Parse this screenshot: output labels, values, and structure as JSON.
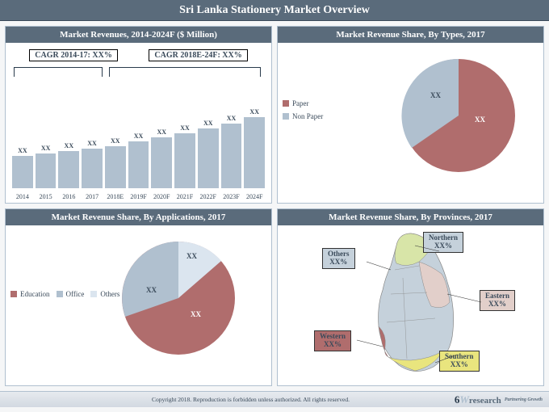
{
  "page": {
    "title": "Sri Lanka Stationery Market Overview",
    "copyright": "Copyright 2018. Reproduction is forbidden unless authorized. All rights reserved.",
    "brand_num": "6",
    "brand_w": "W",
    "brand_name": "research",
    "brand_tag": "Partnering Growth"
  },
  "colors": {
    "header_bg": "#5a6b7b",
    "panel_border": "#b0c0cf",
    "bar_fill": "#b0c0cf",
    "pie_slice_main": "#b06d6d",
    "pie_slice_grey": "#b0c0cf",
    "pie_slice_light": "#dbe5ef",
    "map_green": "#d8e5a8",
    "map_grey": "#c5d1db",
    "map_red": "#b06d6d",
    "map_yellow": "#e9e57e",
    "map_pink": "#e2cfca"
  },
  "panel1": {
    "title": "Market Revenues, 2014-2024F ($ Million)",
    "cagr_left": "CAGR 2014-17: XX%",
    "cagr_right": "CAGR 2018E-24F: XX%",
    "categories": [
      "2014",
      "2015",
      "2016",
      "2017",
      "2018E",
      "2019F",
      "2020F",
      "2021F",
      "2022F",
      "2023F",
      "2024F"
    ],
    "heights": [
      40,
      43,
      46,
      49,
      52,
      58,
      63,
      68,
      74,
      80,
      88
    ],
    "value_labels": [
      "XX",
      "XX",
      "XX",
      "XX",
      "XX",
      "XX",
      "XX",
      "XX",
      "XX",
      "XX",
      "XX"
    ]
  },
  "panel2": {
    "title": "Market Revenue Share, By Types, 2017",
    "legend": [
      "Paper",
      "Non Paper"
    ],
    "slices": [
      {
        "value": 65,
        "color": "#b06d6d",
        "label": "XX"
      },
      {
        "value": 35,
        "color": "#b0c0cf",
        "label": "XX"
      }
    ]
  },
  "panel3": {
    "title": "Market Revenue Share, By Applications, 2017",
    "legend": [
      "Education",
      "Office",
      "Others"
    ],
    "slices": [
      {
        "value": 55,
        "color": "#b06d6d",
        "label": "XX"
      },
      {
        "value": 32,
        "color": "#b0c0cf",
        "label": "XX"
      },
      {
        "value": 13,
        "color": "#dbe5ef",
        "label": "XX"
      }
    ]
  },
  "panel4": {
    "title": "Market Revenue Share, By Provinces, 2017",
    "provinces": [
      {
        "name": "Northern",
        "value": "XX%",
        "bg": "#c5d1db"
      },
      {
        "name": "Others",
        "value": "XX%",
        "bg": "#c5d1db"
      },
      {
        "name": "Eastern",
        "value": "XX%",
        "bg": "#e2cfca"
      },
      {
        "name": "Western",
        "value": "XX%",
        "bg": "#b06d6d"
      },
      {
        "name": "Southern",
        "value": "XX%",
        "bg": "#e9e57e"
      }
    ]
  }
}
